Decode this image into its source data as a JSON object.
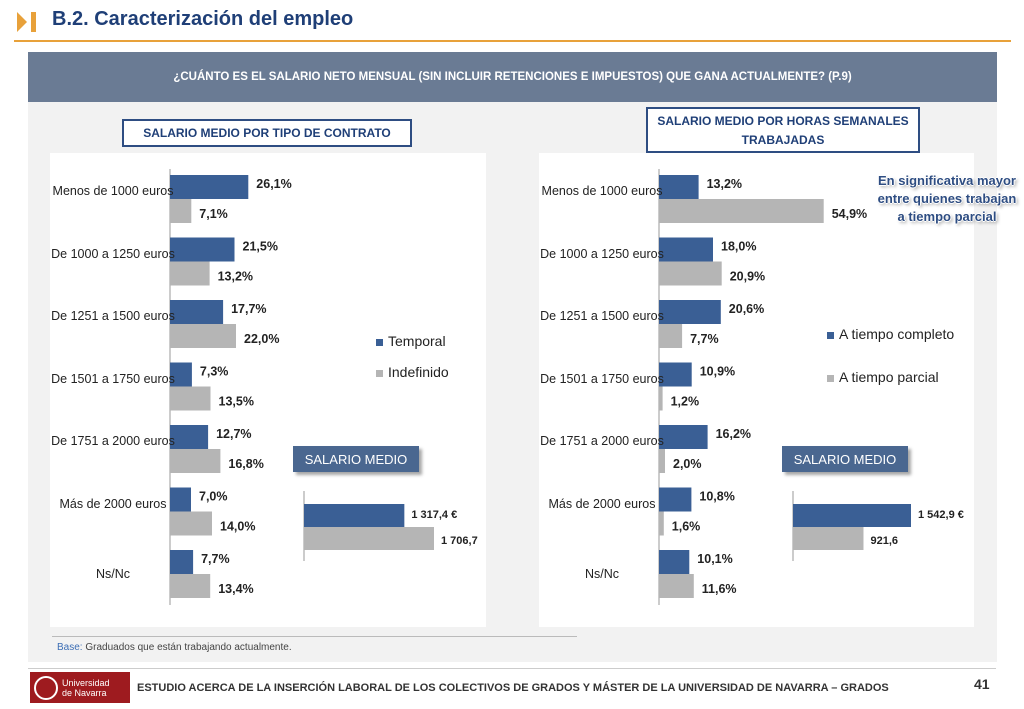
{
  "header": {
    "title": "B.2. Caracterización del empleo"
  },
  "question": "¿CUÁNTO ES EL SALARIO NETO MENSUAL (SIN INCLUIR RETENCIONES E IMPUESTOS) QUE GANA ACTUALMENTE? (P.9)",
  "left": {
    "section_label": "SALARIO MEDIO POR TIPO DE CONTRATO",
    "salario_tag": "SALARIO MEDIO"
  },
  "right": {
    "section_label": "SALARIO MEDIO POR HORAS SEMANALES TRABAJADAS",
    "salario_tag": "SALARIO MEDIO",
    "note": "En significativa mayor entre quienes trabajan a tiempo parcial"
  },
  "base": {
    "label": "Base:",
    "text": " Graduados que están trabajando actualmente."
  },
  "footer": {
    "logo_line1": "Universidad",
    "logo_line2": "de Navarra",
    "text": "ESTUDIO ACERCA DE LA INSERCIÓN LABORAL DE LOS COLECTIVOS DE GRADOS Y MÁSTER DE LA UNIVERSIDAD DE NAVARRA – GRADOS",
    "page": "41"
  },
  "colors": {
    "series1": "#3a5f95",
    "series2": "#b5b5b5",
    "accent": "#e8a13a",
    "title": "#1f3f77"
  },
  "chart_data": [
    {
      "type": "bar",
      "orientation": "horizontal",
      "categories": [
        "Menos de 1000 euros",
        "De 1000 a 1250 euros",
        "De 1251 a 1500 euros",
        "De 1501 a 1750 euros",
        "De 1751 a 2000 euros",
        "Más de 2000 euros",
        "Ns/Nc"
      ],
      "series": [
        {
          "name": "Temporal",
          "values": [
            26.1,
            21.5,
            17.7,
            7.3,
            12.7,
            7.0,
            7.7
          ],
          "labels": [
            "26,1%",
            "21,5%",
            "17,7%",
            "7,3%",
            "12,7%",
            "7,0%",
            "7,7%"
          ]
        },
        {
          "name": "Indefinido",
          "values": [
            7.1,
            13.2,
            22.0,
            13.5,
            16.8,
            14.0,
            13.4
          ],
          "labels": [
            "7,1%",
            "13,2%",
            "22,0%",
            "13,5%",
            "16,8%",
            "14,0%",
            "13,4%"
          ]
        }
      ],
      "legend": "right"
    },
    {
      "type": "bar",
      "orientation": "horizontal",
      "title": "SALARIO MEDIO",
      "series": [
        {
          "name": "Temporal",
          "values": [
            1317.4
          ],
          "labels": [
            "1 317,4 €"
          ]
        },
        {
          "name": "Indefinido",
          "values": [
            1706.7
          ],
          "labels": [
            "1 706,7"
          ]
        }
      ]
    },
    {
      "type": "bar",
      "orientation": "horizontal",
      "categories": [
        "Menos de 1000 euros",
        "De 1000 a 1250 euros",
        "De 1251 a 1500 euros",
        "De 1501 a 1750 euros",
        "De 1751 a 2000 euros",
        "Más de 2000 euros",
        "Ns/Nc"
      ],
      "series": [
        {
          "name": "A tiempo completo",
          "values": [
            13.2,
            18.0,
            20.6,
            10.9,
            16.2,
            10.8,
            10.1
          ],
          "labels": [
            "13,2%",
            "18,0%",
            "20,6%",
            "10,9%",
            "16,2%",
            "10,8%",
            "10,1%"
          ]
        },
        {
          "name": "A tiempo parcial",
          "values": [
            54.9,
            20.9,
            7.7,
            1.2,
            2.0,
            1.6,
            11.6
          ],
          "labels": [
            "54,9%",
            "20,9%",
            "7,7%",
            "1,2%",
            "2,0%",
            "1,6%",
            "11,6%"
          ]
        }
      ],
      "legend": "right"
    },
    {
      "type": "bar",
      "orientation": "horizontal",
      "title": "SALARIO MEDIO",
      "series": [
        {
          "name": "A tiempo completo",
          "values": [
            1542.9
          ],
          "labels": [
            "1 542,9 €"
          ]
        },
        {
          "name": "A tiempo parcial",
          "values": [
            921.6
          ],
          "labels": [
            "921,6"
          ]
        }
      ]
    }
  ]
}
